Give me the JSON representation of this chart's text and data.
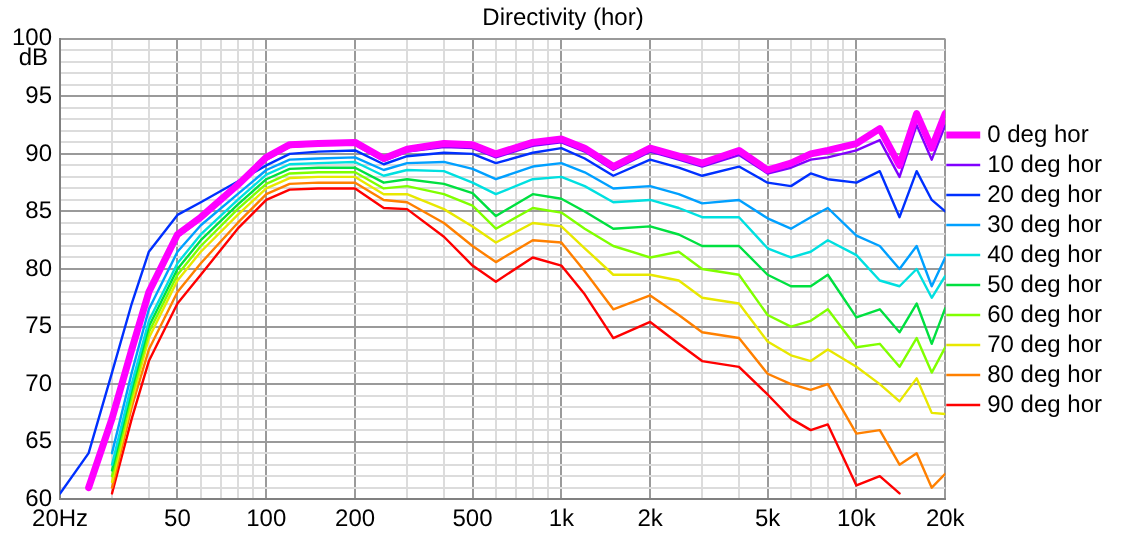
{
  "chart_data": {
    "type": "line",
    "title": "Directivity (hor)",
    "ylabel": "dB",
    "log": "x",
    "grid": true,
    "legend": "right",
    "marker": "none",
    "line_style": "solid",
    "x": [
      20,
      25,
      30,
      35,
      40,
      50,
      60,
      80,
      100,
      120,
      150,
      200,
      250,
      300,
      400,
      500,
      600,
      800,
      1000,
      1200,
      1500,
      2000,
      2500,
      3000,
      4000,
      5000,
      6000,
      7000,
      8000,
      10000,
      12000,
      14000,
      16000,
      18000,
      20000
    ],
    "xlim": [
      20,
      20000
    ],
    "xticks": [
      {
        "value": 20,
        "label": "20Hz"
      },
      {
        "value": 30,
        "label": null
      },
      {
        "value": 40,
        "label": null
      },
      50,
      {
        "value": 60,
        "label": null
      },
      {
        "value": 70,
        "label": null
      },
      {
        "value": 80,
        "label": null
      },
      {
        "value": 90,
        "label": null
      },
      100,
      200,
      {
        "value": 300,
        "label": null
      },
      {
        "value": 400,
        "label": null
      },
      500,
      {
        "value": 600,
        "label": null
      },
      {
        "value": 700,
        "label": null
      },
      {
        "value": 800,
        "label": null
      },
      {
        "value": 900,
        "label": null
      },
      {
        "value": 1000,
        "label": "1k"
      },
      {
        "value": 2000,
        "label": "2k"
      },
      {
        "value": 3000,
        "label": null
      },
      {
        "value": 4000,
        "label": null
      },
      {
        "value": 5000,
        "label": "5k"
      },
      {
        "value": 6000,
        "label": null
      },
      {
        "value": 7000,
        "label": null
      },
      {
        "value": 8000,
        "label": null
      },
      {
        "value": 9000,
        "label": null
      },
      {
        "value": 10000,
        "label": "10k"
      },
      {
        "value": 20000,
        "label": "20k"
      }
    ],
    "ylim": [
      60,
      100
    ],
    "yticks": [
      60,
      {
        "value": 61,
        "label": null
      },
      {
        "value": 62,
        "label": null
      },
      {
        "value": 63,
        "label": null
      },
      {
        "value": 64,
        "label": null
      },
      65,
      {
        "value": 66,
        "label": null
      },
      {
        "value": 67,
        "label": null
      },
      {
        "value": 68,
        "label": null
      },
      {
        "value": 69,
        "label": null
      },
      70,
      {
        "value": 71,
        "label": null
      },
      {
        "value": 72,
        "label": null
      },
      {
        "value": 73,
        "label": null
      },
      {
        "value": 74,
        "label": null
      },
      75,
      {
        "value": 76,
        "label": null
      },
      {
        "value": 77,
        "label": null
      },
      {
        "value": 78,
        "label": null
      },
      {
        "value": 79,
        "label": null
      },
      80,
      {
        "value": 81,
        "label": null
      },
      {
        "value": 82,
        "label": null
      },
      {
        "value": 83,
        "label": null
      },
      {
        "value": 84,
        "label": null
      },
      85,
      {
        "value": 86,
        "label": null
      },
      {
        "value": 87,
        "label": null
      },
      {
        "value": 88,
        "label": null
      },
      {
        "value": 89,
        "label": null
      },
      90,
      {
        "value": 91,
        "label": null
      },
      {
        "value": 92,
        "label": null
      },
      {
        "value": 93,
        "label": null
      },
      {
        "value": 94,
        "label": null
      },
      95,
      {
        "value": 96,
        "label": null
      },
      {
        "value": 97,
        "label": null
      },
      {
        "value": 98,
        "label": null
      },
      {
        "value": 99,
        "label": null
      },
      100
    ],
    "series": [
      {
        "name": "0 deg hor",
        "color": "#ff00ff",
        "values": [
          null,
          61,
          67,
          73,
          78,
          83,
          84.5,
          87.3,
          89.7,
          90.8,
          90.9,
          91,
          89.6,
          90.4,
          90.9,
          90.8,
          90,
          91,
          91.3,
          90.5,
          88.9,
          90.5,
          89.8,
          89.2,
          90.3,
          88.6,
          89.2,
          90,
          90.3,
          90.9,
          92.2,
          89,
          93.5,
          90.5,
          93.5
        ]
      },
      {
        "name": "10 deg hor",
        "color": "#8000ff",
        "values": [
          null,
          null,
          null,
          73,
          78,
          82.8,
          84.3,
          87.2,
          89.5,
          90.6,
          90.8,
          90.8,
          89.4,
          90.2,
          90.6,
          90.5,
          89.7,
          90.7,
          91,
          90.2,
          88.6,
          90.2,
          89.5,
          88.9,
          89.9,
          88.3,
          88.8,
          89.5,
          89.7,
          90.3,
          91.2,
          88,
          92.5,
          89.5,
          92.5
        ]
      },
      {
        "name": "20 deg hor",
        "color": "#0030ff",
        "values": [
          60.5,
          64,
          71,
          77,
          81.5,
          84.7,
          85.8,
          87.6,
          89,
          90,
          90.2,
          90.3,
          89.1,
          89.8,
          90.1,
          90,
          89.2,
          90.1,
          90.5,
          89.6,
          88.1,
          89.5,
          88.8,
          88.1,
          88.9,
          87.5,
          87.2,
          88.3,
          87.8,
          87.5,
          88.5,
          84.5,
          88.5,
          86,
          85
        ]
      },
      {
        "name": "30 deg hor",
        "color": "#00a0ff",
        "values": [
          null,
          null,
          64,
          71,
          76.5,
          81.5,
          83.8,
          86.5,
          88.6,
          89.5,
          89.6,
          89.7,
          88.6,
          89.2,
          89.3,
          88.7,
          87.8,
          88.9,
          89.2,
          88.4,
          87,
          87.2,
          86.5,
          85.7,
          86,
          84.4,
          83.5,
          84.5,
          85.3,
          82.9,
          82,
          80,
          82,
          78.5,
          81
        ]
      },
      {
        "name": "40 deg hor",
        "color": "#00e0e0",
        "values": [
          null,
          null,
          63,
          70,
          75.5,
          80.5,
          83,
          86,
          88.2,
          89.1,
          89.2,
          89.3,
          88.1,
          88.6,
          88.5,
          87.5,
          86.5,
          87.8,
          88,
          87.2,
          85.8,
          86,
          85.3,
          84.5,
          84.5,
          81.8,
          81,
          81.5,
          82.5,
          81.2,
          79,
          78.5,
          80,
          77.5,
          79.4
        ]
      },
      {
        "name": "50 deg hor",
        "color": "#00e040",
        "values": [
          null,
          null,
          62.5,
          69.5,
          75,
          80,
          82.5,
          85.6,
          87.8,
          88.7,
          88.8,
          88.8,
          87.5,
          87.8,
          87.4,
          86.6,
          84.6,
          86.5,
          86.1,
          85,
          83.5,
          83.7,
          83,
          82,
          82,
          79.5,
          78.5,
          78.5,
          79.5,
          75.8,
          76.5,
          74.5,
          77,
          73.5,
          76.6
        ]
      },
      {
        "name": "60 deg hor",
        "color": "#80ff00",
        "values": [
          null,
          null,
          62,
          69,
          74.5,
          79.5,
          82,
          85.2,
          87.4,
          88.3,
          88.4,
          88.4,
          87,
          87.2,
          86.5,
          85.5,
          83.5,
          85.3,
          84.9,
          83.5,
          82,
          81,
          81.5,
          80,
          79.5,
          76,
          75,
          75.5,
          76.5,
          73.2,
          73.5,
          71.5,
          74,
          71,
          73.2
        ]
      },
      {
        "name": "70 deg hor",
        "color": "#e8e800",
        "values": [
          null,
          null,
          61.5,
          68.5,
          74,
          79,
          81.5,
          84.7,
          87,
          87.9,
          88,
          88,
          86.5,
          86.5,
          85.2,
          83.7,
          82.3,
          84,
          83.7,
          81.8,
          79.5,
          79.5,
          79,
          77.5,
          77,
          73.7,
          72.5,
          72,
          73,
          71.5,
          70,
          68.5,
          70.5,
          67.5,
          67.4
        ]
      },
      {
        "name": "80 deg hor",
        "color": "#ff8000",
        "values": [
          null,
          null,
          61,
          68,
          73,
          78,
          80.5,
          84,
          86.5,
          87.4,
          87.5,
          87.5,
          86,
          85.8,
          84,
          82,
          80.6,
          82.5,
          82.3,
          79.8,
          76.5,
          77.7,
          76,
          74.5,
          74,
          70.9,
          70,
          69.5,
          70,
          65.7,
          66,
          63,
          64,
          61,
          62.2
        ]
      },
      {
        "name": "90 deg hor",
        "color": "#ff0000",
        "values": [
          null,
          null,
          60.5,
          67,
          72,
          77,
          79.5,
          83.5,
          86,
          86.9,
          87,
          87,
          85.3,
          85.2,
          82.8,
          80.3,
          78.9,
          81,
          80.3,
          77.8,
          74,
          75.4,
          73.5,
          72,
          71.5,
          69.1,
          67,
          66,
          66.5,
          61.2,
          62,
          60.5,
          null,
          null,
          null
        ]
      }
    ]
  }
}
